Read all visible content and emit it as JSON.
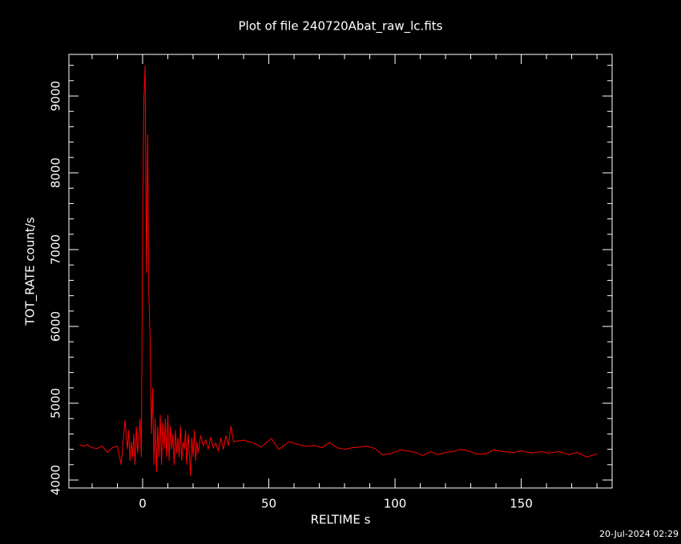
{
  "chart_data": {
    "type": "line",
    "title": "Plot of file 240720Abat_raw_lc.fits",
    "xlabel": "RELTIME  s",
    "ylabel": "TOT_RATE  count/s",
    "footer": "20-Jul-2024 02:29",
    "color": "#ff0000",
    "x": [
      -25,
      -23.5,
      -22,
      -20,
      -18,
      -16,
      -14,
      -12,
      -10,
      -8.5,
      -7,
      -6,
      -5.5,
      -5,
      -4.5,
      -4,
      -3.5,
      -3,
      -2.5,
      -2,
      -1.5,
      -1,
      -0.5,
      0,
      0.5,
      1,
      1.5,
      2,
      2.5,
      3,
      3.5,
      4,
      4.5,
      5,
      5.5,
      6,
      6.5,
      7,
      7.5,
      8,
      8.5,
      9,
      9.5,
      10,
      10.5,
      11,
      11.5,
      12,
      12.5,
      13,
      13.5,
      14,
      14.5,
      15,
      15.5,
      16,
      16.5,
      17,
      17.5,
      18,
      18.5,
      19,
      19.5,
      20,
      20.5,
      21,
      21.5,
      22,
      23,
      24,
      25,
      26,
      27,
      28,
      29,
      30,
      31,
      32,
      33,
      34,
      35,
      36,
      40,
      44,
      47,
      51,
      54,
      58,
      62,
      65,
      68,
      71,
      74,
      77,
      80,
      83,
      86,
      89,
      92,
      95,
      98,
      102,
      105,
      108,
      111,
      114,
      117,
      120,
      123,
      126,
      129,
      132,
      136,
      139,
      143,
      147,
      150,
      154,
      158,
      161,
      165,
      169,
      172,
      176,
      180
    ],
    "values": [
      4460,
      4440,
      4460,
      4420,
      4410,
      4440,
      4360,
      4420,
      4440,
      4200,
      4780,
      4400,
      4650,
      4250,
      4500,
      4300,
      4600,
      4200,
      4700,
      4350,
      4550,
      4800,
      4300,
      7300,
      8950,
      9400,
      6700,
      8500,
      6400,
      5800,
      4600,
      5200,
      4200,
      4800,
      4100,
      4700,
      4300,
      4850,
      4200,
      4750,
      4400,
      4800,
      4300,
      4850,
      4250,
      4700,
      4400,
      4600,
      4200,
      4650,
      4350,
      4550,
      4300,
      4700,
      4250,
      4500,
      4400,
      4650,
      4200,
      4600,
      4350,
      4050,
      4550,
      4300,
      4650,
      4250,
      4500,
      4350,
      4580,
      4450,
      4520,
      4400,
      4560,
      4420,
      4480,
      4380,
      4550,
      4400,
      4580,
      4450,
      4700,
      4500,
      4520,
      4480,
      4430,
      4540,
      4400,
      4500,
      4460,
      4440,
      4450,
      4420,
      4490,
      4420,
      4400,
      4420,
      4430,
      4440,
      4410,
      4330,
      4340,
      4390,
      4380,
      4360,
      4320,
      4370,
      4330,
      4360,
      4370,
      4400,
      4380,
      4340,
      4340,
      4390,
      4370,
      4360,
      4380,
      4350,
      4370,
      4350,
      4370,
      4330,
      4360,
      4300,
      4340
    ],
    "xlim": [
      -29.2,
      186
    ],
    "ylim": [
      3896,
      9542
    ],
    "xticks": [
      0,
      50,
      100,
      150
    ],
    "yticks": [
      4000,
      5000,
      6000,
      7000,
      8000,
      9000
    ],
    "x_minor_ticks": [
      -20,
      -10,
      10,
      20,
      30,
      40,
      60,
      70,
      80,
      90,
      110,
      120,
      130,
      140,
      160,
      170,
      180
    ],
    "y_minor_ticks": [
      4200,
      4400,
      4600,
      4800,
      5200,
      5400,
      5600,
      5800,
      6200,
      6400,
      6600,
      6800,
      7200,
      7400,
      7600,
      7800,
      8200,
      8400,
      8600,
      8800,
      9200,
      9400
    ]
  }
}
